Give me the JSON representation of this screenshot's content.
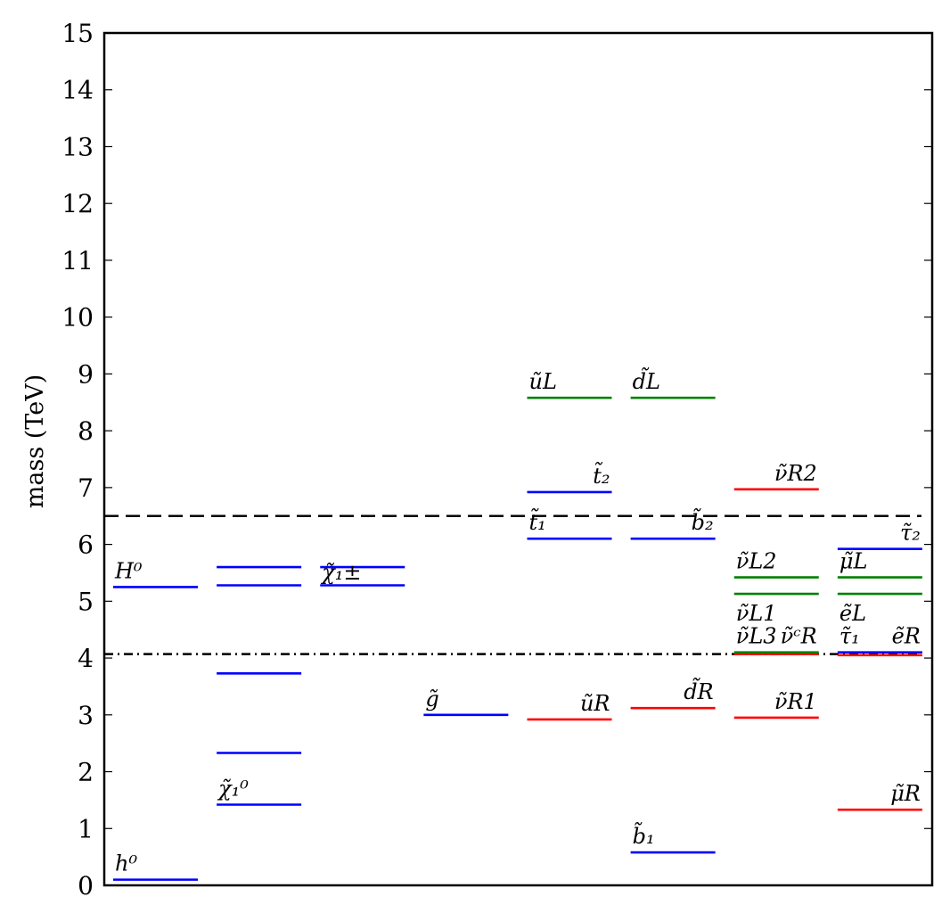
{
  "chart_data": {
    "type": "level-spectrum",
    "ylabel": "mass (TeV)",
    "ylim": [
      0,
      15
    ],
    "yticks": [
      "0",
      "1",
      "2",
      "3",
      "4",
      "5",
      "6",
      "7",
      "8",
      "9",
      "10",
      "11",
      "12",
      "13",
      "14",
      "15"
    ],
    "colors": {
      "blue": "#0000ff",
      "green": "#008000",
      "red": "#ff0000",
      "axis": "#000000"
    },
    "reference_lines": [
      {
        "value": 6.5,
        "style": "dashed"
      },
      {
        "value": 4.07,
        "style": "dashdot"
      }
    ],
    "columns": 8,
    "levels": [
      {
        "col": 0,
        "mass": 0.1,
        "color": "blue",
        "label": "h⁰",
        "label_pos": "above-left"
      },
      {
        "col": 0,
        "mass": 5.25,
        "color": "blue",
        "label": "H⁰",
        "label_pos": "above-left"
      },
      {
        "col": 1,
        "mass": 1.42,
        "color": "blue",
        "label": "χ̃₁⁰",
        "label_pos": "above-left"
      },
      {
        "col": 1,
        "mass": 2.33,
        "color": "blue",
        "label": "",
        "label_pos": "none"
      },
      {
        "col": 1,
        "mass": 3.73,
        "color": "blue",
        "label": "",
        "label_pos": "none"
      },
      {
        "col": 1,
        "mass": 5.28,
        "color": "blue",
        "label": "",
        "label_pos": "none"
      },
      {
        "col": 1,
        "mass": 5.6,
        "color": "blue",
        "label": "",
        "label_pos": "none"
      },
      {
        "col": 2,
        "mass": 5.28,
        "color": "blue",
        "label": "",
        "label_pos": "none"
      },
      {
        "col": 2,
        "mass": 5.6,
        "color": "blue",
        "label": "χ̃₁±",
        "label_pos": "on-left"
      },
      {
        "col": 3,
        "mass": 3.0,
        "color": "blue",
        "label": "g̃",
        "label_pos": "above-left"
      },
      {
        "col": 4,
        "mass": 2.92,
        "color": "red",
        "label": "ũR",
        "label_pos": "above-right"
      },
      {
        "col": 4,
        "mass": 6.1,
        "color": "blue",
        "label": "t̃₁",
        "label_pos": "above-left"
      },
      {
        "col": 4,
        "mass": 6.92,
        "color": "blue",
        "label": "t̃₂",
        "label_pos": "above-right"
      },
      {
        "col": 4,
        "mass": 8.58,
        "color": "green",
        "label": "ũL",
        "label_pos": "above-left"
      },
      {
        "col": 5,
        "mass": 0.58,
        "color": "blue",
        "label": "b̃₁",
        "label_pos": "above-left"
      },
      {
        "col": 5,
        "mass": 3.12,
        "color": "red",
        "label": "d̃R",
        "label_pos": "above-right"
      },
      {
        "col": 5,
        "mass": 6.1,
        "color": "blue",
        "label": "b̃₂",
        "label_pos": "above-right"
      },
      {
        "col": 5,
        "mass": 8.58,
        "color": "green",
        "label": "d̃L",
        "label_pos": "above-left"
      },
      {
        "col": 6,
        "mass": 2.95,
        "color": "red",
        "label": "ν̃R1",
        "label_pos": "above-right"
      },
      {
        "col": 6,
        "mass": 4.07,
        "color": "red",
        "label": "",
        "label_pos": "none"
      },
      {
        "col": 6,
        "mass": 4.1,
        "color": "green",
        "label": "",
        "label_pos": "none"
      },
      {
        "col": 6,
        "mass": 5.13,
        "color": "green",
        "label": "ν̃L1",
        "label_pos": "below-left"
      },
      {
        "col": 6,
        "mass": 5.42,
        "color": "green",
        "label": "ν̃L2",
        "label_pos": "above-left"
      },
      {
        "col": 6,
        "mass": 6.97,
        "color": "red",
        "label": "ν̃R2",
        "label_pos": "above-right"
      },
      {
        "col": 7,
        "mass": 1.33,
        "color": "red",
        "label": "μ̃R",
        "label_pos": "above-right"
      },
      {
        "col": 7,
        "mass": 4.05,
        "color": "red",
        "label": "",
        "label_pos": "none"
      },
      {
        "col": 7,
        "mass": 4.1,
        "color": "blue",
        "label": "",
        "label_pos": "none"
      },
      {
        "col": 7,
        "mass": 5.13,
        "color": "green",
        "label": "ẽL",
        "label_pos": "below-left"
      },
      {
        "col": 7,
        "mass": 5.42,
        "color": "green",
        "label": "μ̃L",
        "label_pos": "above-left"
      },
      {
        "col": 7,
        "mass": 5.92,
        "color": "blue",
        "label": "τ̃₂",
        "label_pos": "above-right"
      }
    ],
    "extra_labels": [
      {
        "col": 6,
        "mass": 4.1,
        "label": "ν̃L3",
        "side": "left"
      },
      {
        "col": 6,
        "mass": 4.1,
        "label": "ν̃ᶜR",
        "side": "right"
      },
      {
        "col": 7,
        "mass": 4.1,
        "label": "τ̃₁",
        "side": "left"
      },
      {
        "col": 7,
        "mass": 4.1,
        "label": "ẽR",
        "side": "right"
      }
    ]
  }
}
